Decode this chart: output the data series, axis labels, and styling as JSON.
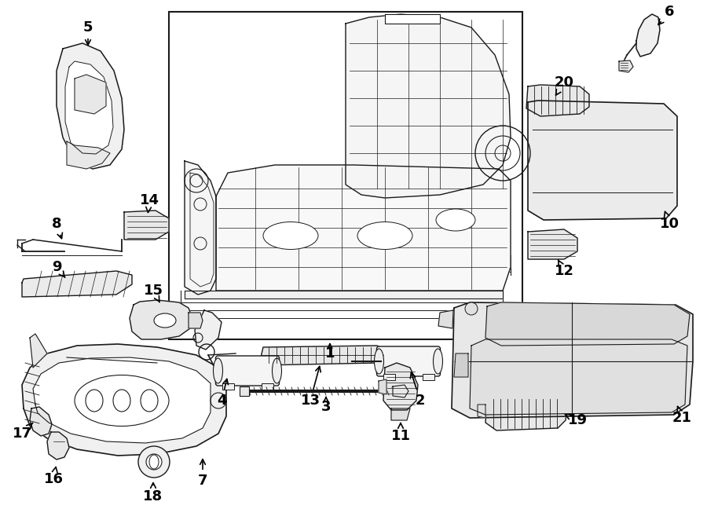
{
  "bg": "#ffffff",
  "lc": "#1a1a1a",
  "figsize": [
    9.0,
    6.62
  ],
  "dpi": 100
}
